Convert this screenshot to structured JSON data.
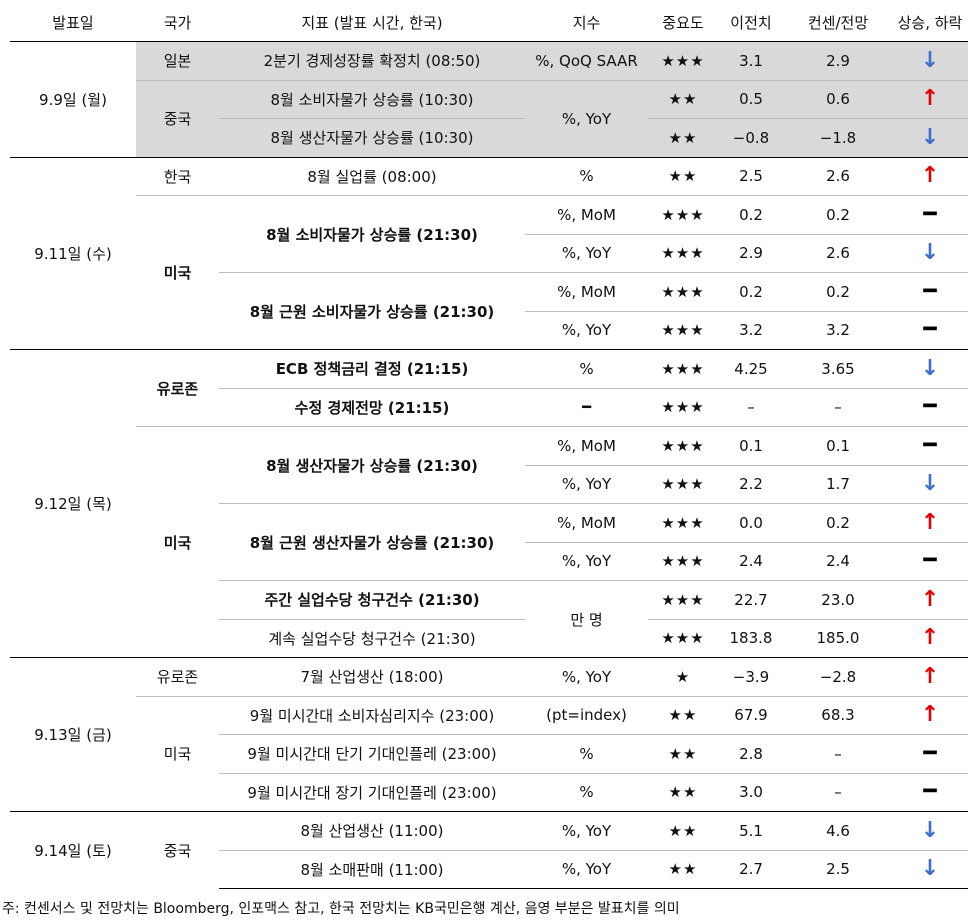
{
  "header": {
    "date": "발표일",
    "country": "국가",
    "indicator": "지표 (발표 시간, 한국)",
    "unit": "지수",
    "importance": "중요도",
    "previous": "이전치",
    "forecast": "컨센/전망",
    "direction": "상승, 하락"
  },
  "rows": [
    {
      "date": "9.9일 (월)",
      "country": "일본",
      "indicator": "2분기 경제성장률 확정치 (08:50)",
      "unit": "%, QoQ SAAR",
      "stars": "★★★",
      "previous": "3.1",
      "forecast": "2.9",
      "dir": "↓"
    },
    {
      "country": "중국",
      "indicator": "8월 소비자물가 상승률 (10:30)",
      "unit": "%, YoY",
      "stars": "★★",
      "previous": "0.5",
      "forecast": "0.6",
      "dir": "↑"
    },
    {
      "indicator": "8월 생산자물가 상승률 (10:30)",
      "stars": "★★",
      "previous": "−0.8",
      "forecast": "−1.8",
      "dir": "↓"
    },
    {
      "date": "9.11일 (수)",
      "country": "한국",
      "indicator": "8월 실업률 (08:00)",
      "unit": "%",
      "stars": "★★",
      "previous": "2.5",
      "forecast": "2.6",
      "dir": "↑"
    },
    {
      "country": "미국",
      "indicator": "8월 소비자물가 상승률 (21:30)",
      "unit": "%, MoM",
      "stars": "★★★",
      "previous": "0.2",
      "forecast": "0.2",
      "dir": "━"
    },
    {
      "unit": "%, YoY",
      "stars": "★★★",
      "previous": "2.9",
      "forecast": "2.6",
      "dir": "↓"
    },
    {
      "indicator": "8월 근원 소비자물가 상승률 (21:30)",
      "unit": "%, MoM",
      "stars": "★★★",
      "previous": "0.2",
      "forecast": "0.2",
      "dir": "━"
    },
    {
      "unit": "%, YoY",
      "stars": "★★★",
      "previous": "3.2",
      "forecast": "3.2",
      "dir": "━"
    },
    {
      "date": "9.12일 (목)",
      "country": "유로존",
      "indicator": "ECB 정책금리 결정 (21:15)",
      "unit": "%",
      "stars": "★★★",
      "previous": "4.25",
      "forecast": "3.65",
      "dir": "↓"
    },
    {
      "indicator": "수정 경제전망  (21:15)",
      "unit": "━",
      "stars": "★★★",
      "previous": "–",
      "forecast": "–",
      "dir": "━"
    },
    {
      "country": "미국",
      "indicator": "8월 생산자물가 상승률 (21:30)",
      "unit": "%, MoM",
      "stars": "★★★",
      "previous": "0.1",
      "forecast": "0.1",
      "dir": "━"
    },
    {
      "unit": "%, YoY",
      "stars": "★★★",
      "previous": "2.2",
      "forecast": "1.7",
      "dir": "↓"
    },
    {
      "indicator": "8월 근원 생산자물가 상승률 (21:30)",
      "unit": "%, MoM",
      "stars": "★★★",
      "previous": "0.0",
      "forecast": "0.2",
      "dir": "↑"
    },
    {
      "unit": "%, YoY",
      "stars": "★★★",
      "previous": "2.4",
      "forecast": "2.4",
      "dir": "━"
    },
    {
      "indicator": "주간 실업수당 청구건수 (21:30)",
      "unit": "만 명",
      "stars": "★★★",
      "previous": "22.7",
      "forecast": "23.0",
      "dir": "↑"
    },
    {
      "indicator": "계속 실업수당 청구건수 (21:30)",
      "stars": "★★★",
      "previous": "183.8",
      "forecast": "185.0",
      "dir": "↑"
    },
    {
      "date": "9.13일 (금)",
      "country": "유로존",
      "indicator": "7월 산업생산 (18:00)",
      "unit": "%, YoY",
      "stars": "★",
      "previous": "−3.9",
      "forecast": "−2.8",
      "dir": "↑"
    },
    {
      "country": "미국",
      "indicator": "9월 미시간대 소비자심리지수 (23:00)",
      "unit": "(pt=index)",
      "stars": "★★",
      "previous": "67.9",
      "forecast": "68.3",
      "dir": "↑"
    },
    {
      "indicator": "9월 미시간대 단기 기대인플레 (23:00)",
      "unit": "%",
      "stars": "★★",
      "previous": "2.8",
      "forecast": "–",
      "dir": "━"
    },
    {
      "indicator": "9월 미시간대 장기 기대인플레 (23:00)",
      "unit": "%",
      "stars": "★★",
      "previous": "3.0",
      "forecast": "–",
      "dir": "━"
    },
    {
      "date": "9.14일 (토)",
      "country": "중국",
      "indicator": "8월 산업생산 (11:00)",
      "unit": "%, YoY",
      "stars": "★★",
      "previous": "5.1",
      "forecast": "4.6",
      "dir": "↓"
    },
    {
      "indicator": "8월 소매판매 (11:00)",
      "unit": "%, YoY",
      "stars": "★★",
      "previous": "2.7",
      "forecast": "2.5",
      "dir": "↓"
    }
  ],
  "footnote": "주: 컨센서스 및 전망치는 Bloomberg, 인포맥스 참고, 한국 전망치는 KB국민은행 계산, 음영 부분은 발표치를 의미",
  "colors": {
    "up": "#e60000",
    "down": "#3f6fce",
    "shade": "#d9d9d9"
  }
}
